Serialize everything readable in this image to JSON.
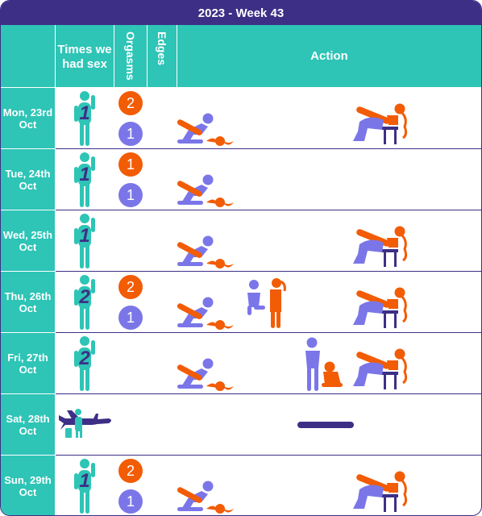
{
  "title": "2023 - Week 43",
  "headers": {
    "days": "",
    "times": "Times we had sex",
    "orgasms": "Orgasms",
    "edges": "Edges",
    "action": "Action"
  },
  "colors": {
    "header_bg": "#3d2f86",
    "teal": "#2ec4b6",
    "orange": "#f25c05",
    "purple": "#7b76e8"
  },
  "days": [
    {
      "label": "Mon, 23rd Oct",
      "times": "1",
      "orgasms": [
        "2",
        "1"
      ],
      "action_icons": [
        "position-prone-icon",
        "position-chair-icon"
      ]
    },
    {
      "label": "Tue, 24th Oct",
      "times": "1",
      "orgasms": [
        "1",
        "1"
      ],
      "action_icons": [
        "position-prone-icon"
      ]
    },
    {
      "label": "Wed, 25th Oct",
      "times": "1",
      "orgasms": [],
      "action_icons": [
        "position-prone-icon",
        "position-chair-icon"
      ]
    },
    {
      "label": "Thu, 26th Oct",
      "times": "2",
      "orgasms": [
        "2",
        "1"
      ],
      "action_icons": [
        "position-prone-icon",
        "position-kneeling-icon",
        "position-chair-icon"
      ]
    },
    {
      "label": "Fri, 27th Oct",
      "times": "2",
      "orgasms": [],
      "action_icons": [
        "position-prone-icon",
        "position-standing-icon",
        "position-chair-icon"
      ]
    },
    {
      "label": "Sat, 28th Oct",
      "times": "",
      "orgasms": [],
      "action_icons": [
        "travel-icon",
        "no-action-dash"
      ]
    },
    {
      "label": "Sun, 29th Oct",
      "times": "1",
      "orgasms": [
        "2",
        "1"
      ],
      "action_icons": [
        "position-prone-icon",
        "position-chair-icon"
      ]
    }
  ]
}
